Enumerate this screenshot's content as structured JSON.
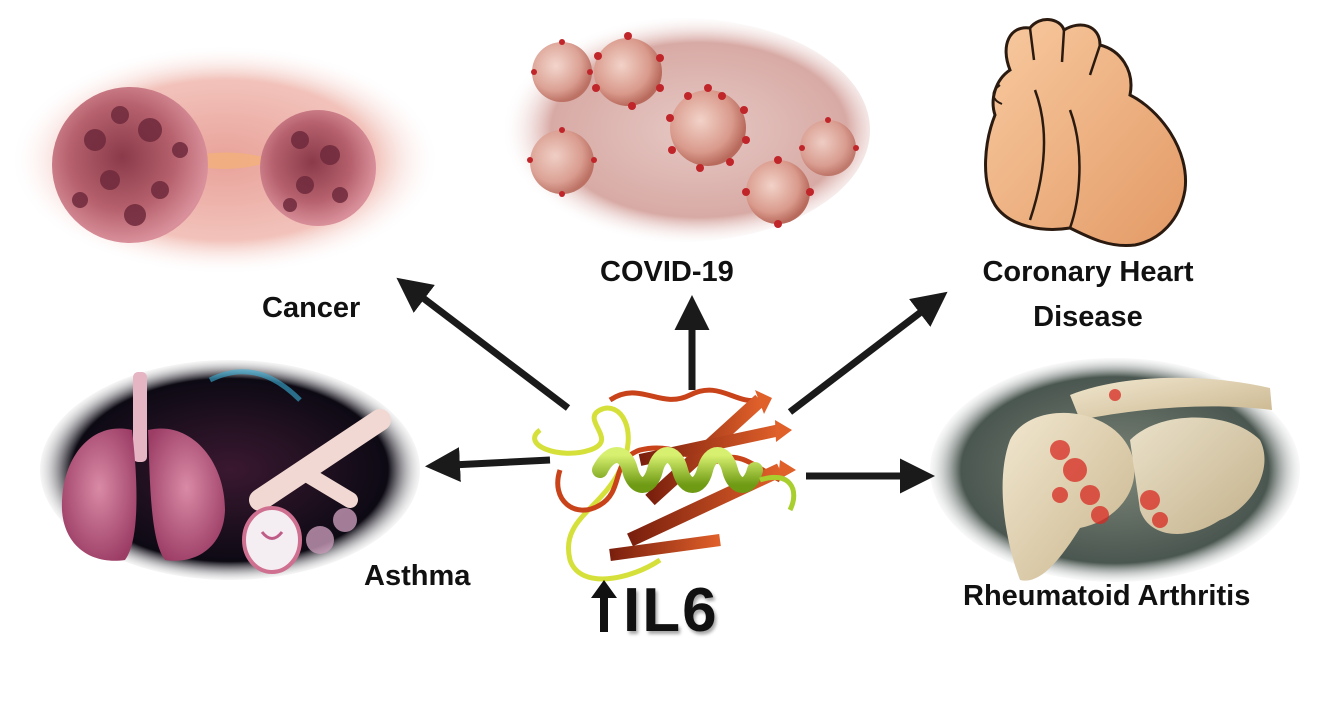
{
  "center": {
    "label": "IL6",
    "prefix_icon": "up-arrow-icon",
    "protein_icon": "il6-protein-structure-icon"
  },
  "diseases": {
    "cancer": {
      "label": "Cancer",
      "icon": "cancer-cell-division-icon"
    },
    "covid": {
      "label": "COVID-19",
      "icon": "coronavirus-particles-icon"
    },
    "chd": {
      "line1": "Coronary Heart",
      "line2": "Disease",
      "icon": "heart-icon"
    },
    "asthma": {
      "label": "Asthma",
      "icon": "lungs-bronchi-icon"
    },
    "ra": {
      "label": "Rheumatoid Arthritis",
      "icon": "inflamed-shoulder-joint-icon"
    }
  },
  "colors": {
    "arrow": "#1a1a1a",
    "text": "#111111",
    "helix": "#a8cf2e",
    "strand": "#c9431a",
    "coil": "#d6e03a"
  }
}
